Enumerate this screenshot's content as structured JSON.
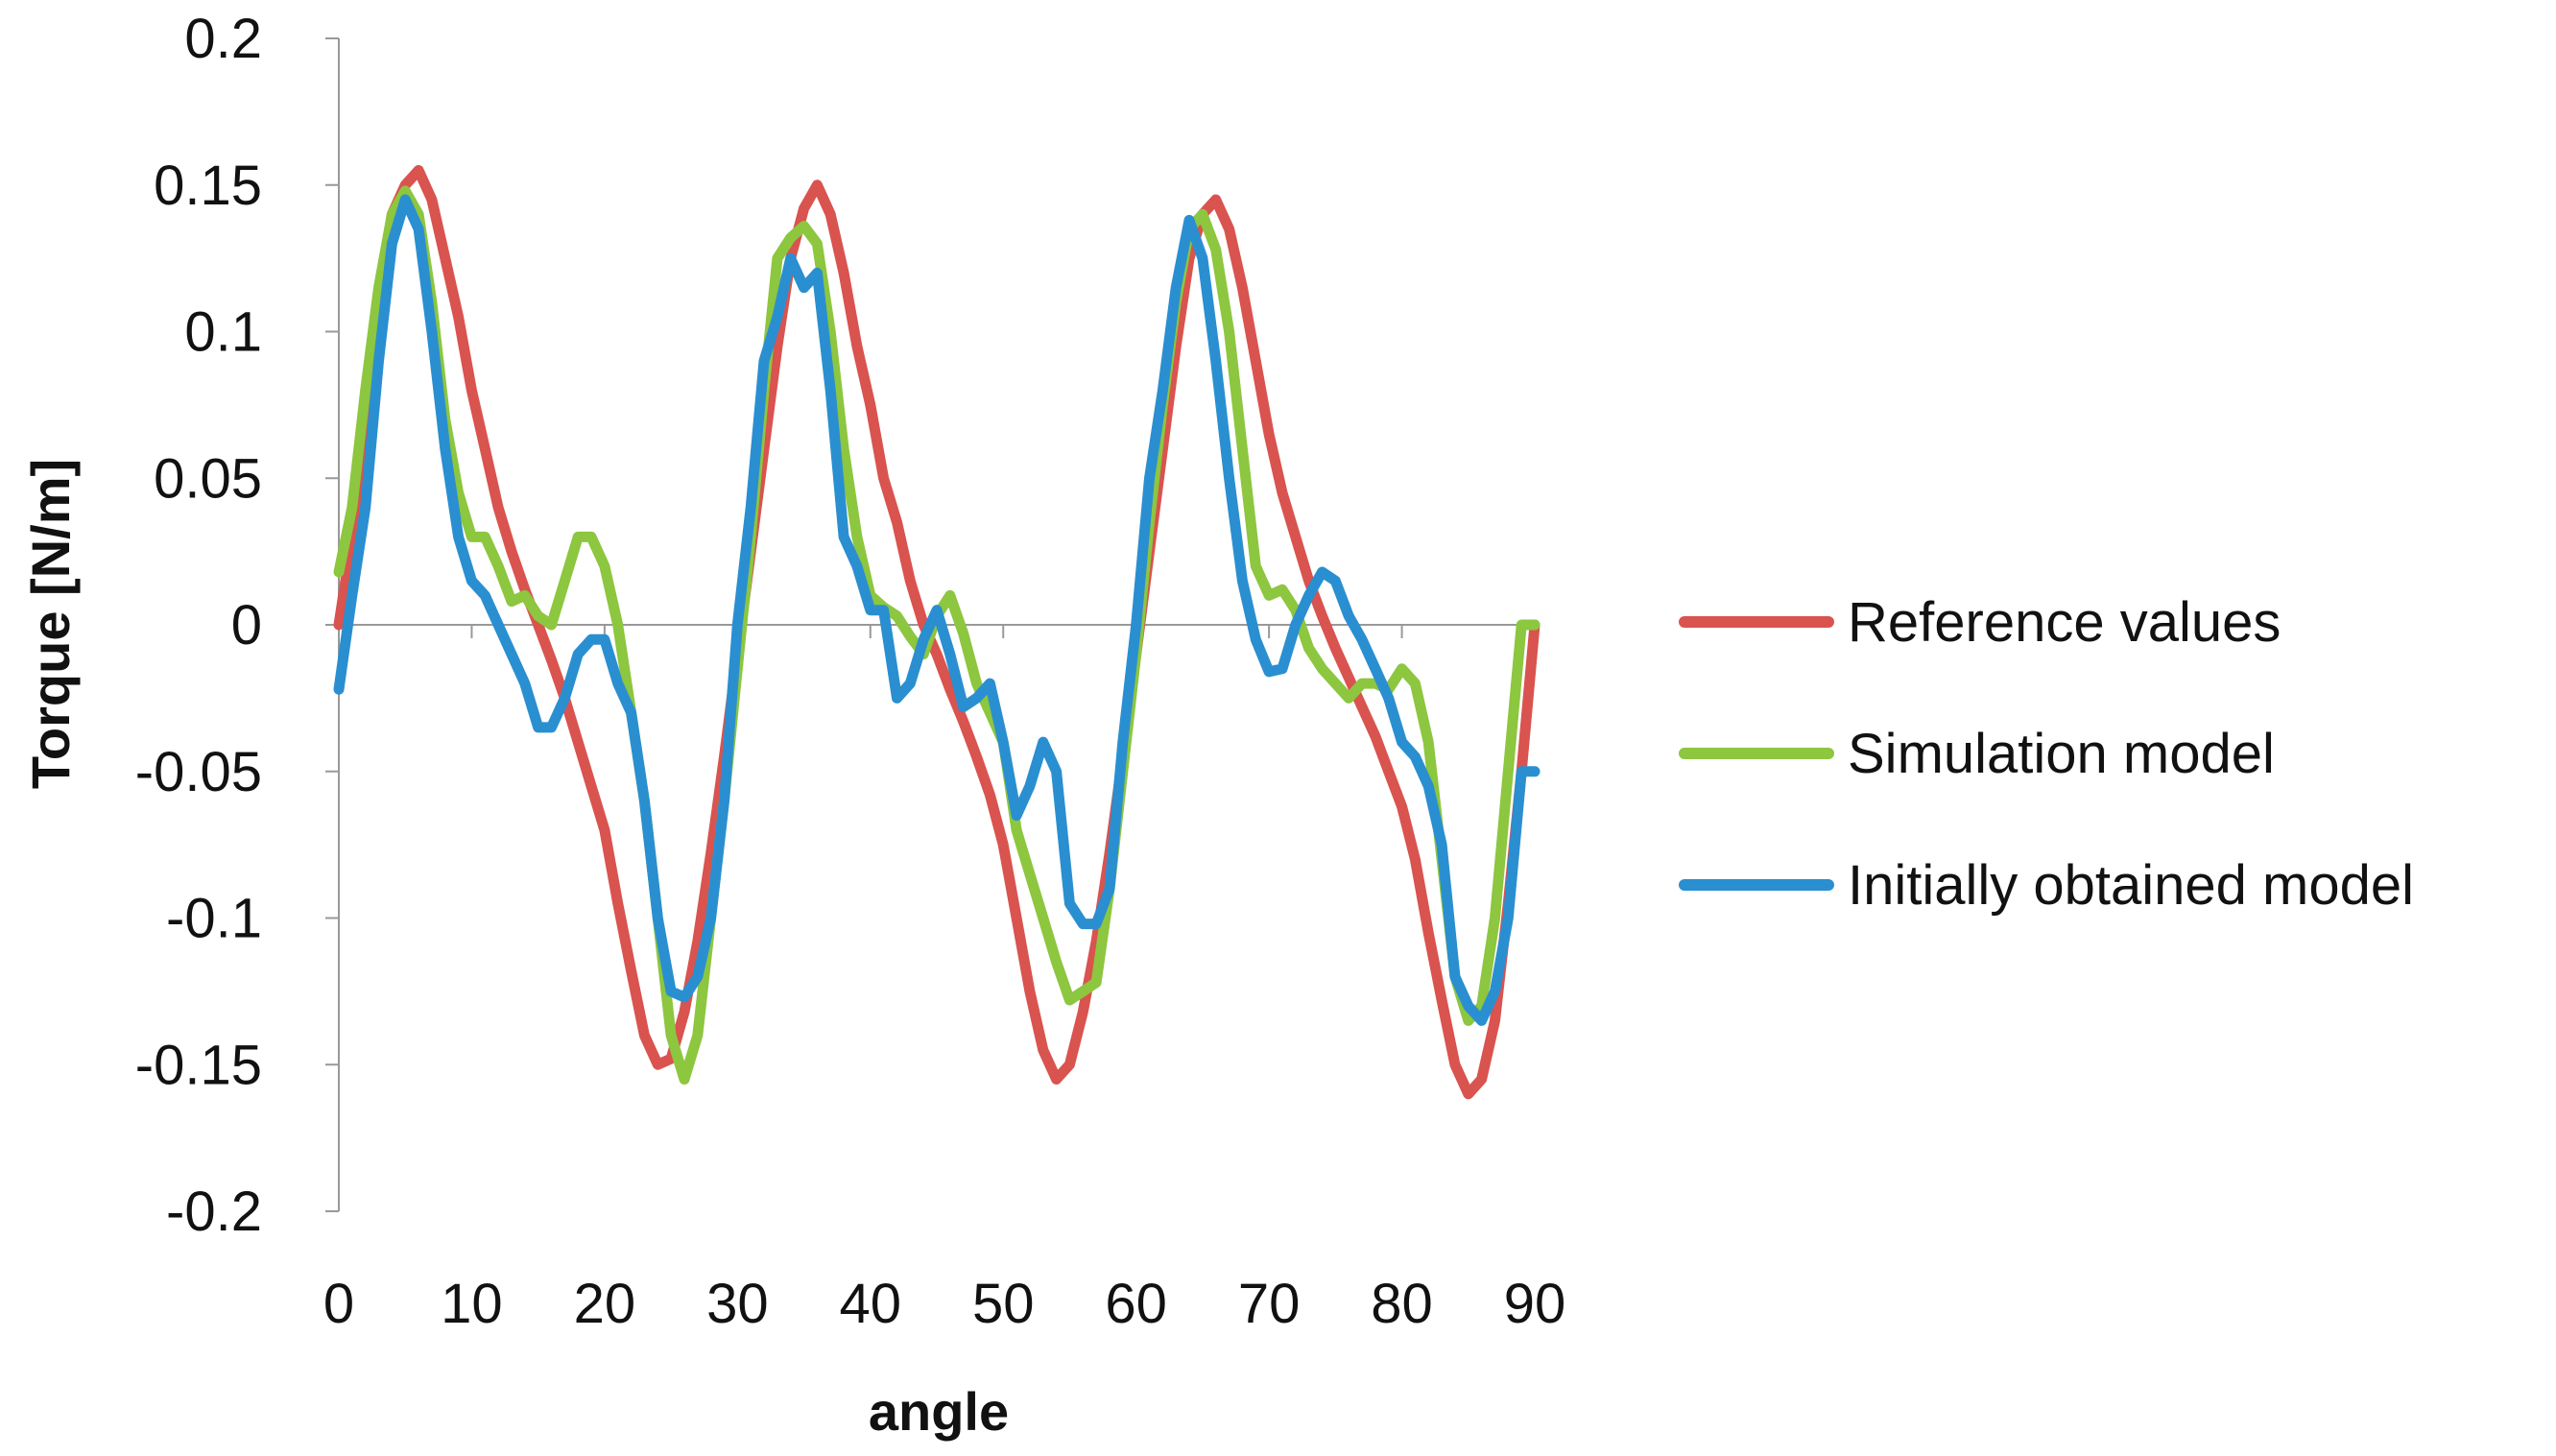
{
  "chart_data": {
    "type": "line",
    "title": "",
    "xlabel": "angle",
    "ylabel": "Torque  [N/m]",
    "xlim": [
      0,
      90
    ],
    "ylim": [
      -0.2,
      0.2
    ],
    "xticks": [
      0,
      10,
      20,
      30,
      40,
      50,
      60,
      70,
      80,
      90
    ],
    "yticks": [
      0.2,
      0.15,
      0.1,
      0.05,
      0,
      -0.05,
      -0.1,
      -0.15,
      -0.2
    ],
    "xtick_labels": [
      "0",
      "10",
      "20",
      "30",
      "40",
      "50",
      "60",
      "70",
      "80",
      "90"
    ],
    "ytick_labels": [
      "0.2",
      "0.15",
      "0.1",
      "0.05",
      "0",
      "-0.05",
      "-0.1",
      "-0.15",
      "-0.2"
    ],
    "legend_position": "right",
    "grid": false,
    "series": [
      {
        "name": "Reference values",
        "color": "#d9534f",
        "x": [
          0,
          1,
          2,
          3,
          4,
          5,
          6,
          7,
          8,
          9,
          10,
          11,
          12,
          13,
          14,
          15,
          16,
          17,
          18,
          19,
          20,
          21,
          22,
          23,
          24,
          25,
          26,
          27,
          28,
          29,
          30,
          31,
          32,
          33,
          34,
          35,
          36,
          37,
          38,
          39,
          40,
          41,
          42,
          43,
          44,
          45,
          46,
          47,
          48,
          49,
          50,
          51,
          52,
          53,
          54,
          55,
          56,
          57,
          58,
          59,
          60,
          61,
          62,
          63,
          64,
          65,
          66,
          67,
          68,
          69,
          70,
          71,
          72,
          73,
          74,
          75,
          76,
          77,
          78,
          79,
          80,
          81,
          82,
          83,
          84,
          85,
          86,
          87,
          88,
          89,
          90
        ],
        "values": [
          0.0,
          0.03,
          0.07,
          0.11,
          0.14,
          0.15,
          0.155,
          0.145,
          0.125,
          0.105,
          0.08,
          0.06,
          0.04,
          0.025,
          0.012,
          0.0,
          -0.012,
          -0.025,
          -0.04,
          -0.055,
          -0.07,
          -0.095,
          -0.118,
          -0.14,
          -0.15,
          -0.148,
          -0.132,
          -0.108,
          -0.078,
          -0.045,
          -0.01,
          0.025,
          0.06,
          0.095,
          0.125,
          0.142,
          0.15,
          0.14,
          0.12,
          0.095,
          0.075,
          0.05,
          0.035,
          0.015,
          0.0,
          -0.01,
          -0.022,
          -0.033,
          -0.045,
          -0.058,
          -0.075,
          -0.1,
          -0.125,
          -0.145,
          -0.155,
          -0.15,
          -0.132,
          -0.108,
          -0.078,
          -0.045,
          -0.01,
          0.025,
          0.06,
          0.095,
          0.125,
          0.14,
          0.145,
          0.135,
          0.115,
          0.09,
          0.065,
          0.045,
          0.03,
          0.015,
          0.003,
          -0.008,
          -0.018,
          -0.028,
          -0.038,
          -0.05,
          -0.062,
          -0.08,
          -0.105,
          -0.128,
          -0.15,
          -0.16,
          -0.155,
          -0.135,
          -0.095,
          -0.05,
          0.0
        ]
      },
      {
        "name": "Simulation model",
        "color": "#8dc63f",
        "x": [
          0,
          1,
          2,
          3,
          4,
          5,
          6,
          7,
          8,
          9,
          10,
          11,
          12,
          13,
          14,
          15,
          16,
          17,
          18,
          19,
          20,
          21,
          22,
          23,
          24,
          25,
          26,
          27,
          28,
          29,
          30,
          31,
          32,
          33,
          34,
          35,
          36,
          37,
          38,
          39,
          40,
          41,
          42,
          43,
          44,
          45,
          46,
          47,
          48,
          49,
          50,
          51,
          52,
          53,
          54,
          55,
          56,
          57,
          58,
          59,
          60,
          61,
          62,
          63,
          64,
          65,
          66,
          67,
          68,
          69,
          70,
          71,
          72,
          73,
          74,
          75,
          76,
          77,
          78,
          79,
          80,
          81,
          82,
          83,
          84,
          85,
          86,
          87,
          88,
          89,
          90
        ],
        "values": [
          0.018,
          0.04,
          0.08,
          0.115,
          0.14,
          0.148,
          0.14,
          0.11,
          0.07,
          0.045,
          0.03,
          0.03,
          0.02,
          0.008,
          0.01,
          0.003,
          0.0,
          0.015,
          0.03,
          0.03,
          0.02,
          0.0,
          -0.03,
          -0.06,
          -0.1,
          -0.14,
          -0.155,
          -0.14,
          -0.1,
          -0.06,
          -0.015,
          0.03,
          0.08,
          0.125,
          0.132,
          0.136,
          0.13,
          0.1,
          0.06,
          0.03,
          0.01,
          0.006,
          0.003,
          -0.004,
          -0.01,
          0.003,
          0.01,
          -0.003,
          -0.02,
          -0.03,
          -0.04,
          -0.07,
          -0.085,
          -0.1,
          -0.115,
          -0.128,
          -0.125,
          -0.122,
          -0.09,
          -0.05,
          -0.01,
          0.035,
          0.075,
          0.11,
          0.135,
          0.14,
          0.128,
          0.1,
          0.06,
          0.02,
          0.01,
          0.012,
          0.005,
          -0.008,
          -0.015,
          -0.02,
          -0.025,
          -0.02,
          -0.02,
          -0.022,
          -0.015,
          -0.02,
          -0.04,
          -0.08,
          -0.12,
          -0.135,
          -0.13,
          -0.1,
          -0.05,
          0.0,
          0.0
        ]
      },
      {
        "name": "Initially obtained model",
        "color": "#2a8fd0",
        "x": [
          0,
          1,
          2,
          3,
          4,
          5,
          6,
          7,
          8,
          9,
          10,
          11,
          12,
          13,
          14,
          15,
          16,
          17,
          18,
          19,
          20,
          21,
          22,
          23,
          24,
          25,
          26,
          27,
          28,
          29,
          30,
          31,
          32,
          33,
          34,
          35,
          36,
          37,
          38,
          39,
          40,
          41,
          42,
          43,
          44,
          45,
          46,
          47,
          48,
          49,
          50,
          51,
          52,
          53,
          54,
          55,
          56,
          57,
          58,
          59,
          60,
          61,
          62,
          63,
          64,
          65,
          66,
          67,
          68,
          69,
          70,
          71,
          72,
          73,
          74,
          75,
          76,
          77,
          78,
          79,
          80,
          81,
          82,
          83,
          84,
          85,
          86,
          87,
          88,
          89,
          90
        ],
        "values": [
          -0.022,
          0.01,
          0.04,
          0.09,
          0.13,
          0.145,
          0.135,
          0.1,
          0.06,
          0.03,
          0.015,
          0.01,
          0.0,
          -0.01,
          -0.02,
          -0.035,
          -0.035,
          -0.025,
          -0.01,
          -0.005,
          -0.005,
          -0.02,
          -0.03,
          -0.06,
          -0.1,
          -0.125,
          -0.127,
          -0.12,
          -0.1,
          -0.06,
          0.0,
          0.04,
          0.09,
          0.105,
          0.125,
          0.115,
          0.12,
          0.08,
          0.03,
          0.02,
          0.005,
          0.005,
          -0.025,
          -0.02,
          -0.005,
          0.005,
          -0.01,
          -0.028,
          -0.025,
          -0.02,
          -0.04,
          -0.065,
          -0.055,
          -0.04,
          -0.05,
          -0.095,
          -0.102,
          -0.102,
          -0.09,
          -0.04,
          0.0,
          0.05,
          0.08,
          0.115,
          0.138,
          0.125,
          0.09,
          0.05,
          0.015,
          -0.005,
          -0.016,
          -0.015,
          0.0,
          0.01,
          0.018,
          0.015,
          0.003,
          -0.005,
          -0.015,
          -0.025,
          -0.04,
          -0.045,
          -0.055,
          -0.075,
          -0.12,
          -0.13,
          -0.135,
          -0.125,
          -0.1,
          -0.05,
          -0.05
        ]
      }
    ]
  }
}
